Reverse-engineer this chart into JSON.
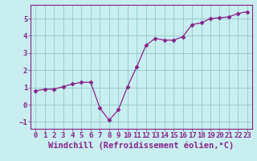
{
  "x": [
    0,
    1,
    2,
    3,
    4,
    5,
    6,
    7,
    8,
    9,
    10,
    11,
    12,
    13,
    14,
    15,
    16,
    17,
    18,
    19,
    20,
    21,
    22,
    23
  ],
  "y": [
    0.8,
    0.9,
    0.9,
    1.05,
    1.2,
    1.3,
    1.3,
    -0.2,
    -0.9,
    -0.3,
    1.05,
    2.2,
    3.45,
    3.85,
    3.75,
    3.75,
    3.95,
    4.65,
    4.75,
    5.0,
    5.05,
    5.1,
    5.3,
    5.4
  ],
  "line_color": "#882288",
  "marker": "D",
  "marker_size": 2.5,
  "bg_color": "#c8eef0",
  "grid_color": "#99cccc",
  "xlabel": "Windchill (Refroidissement éolien,°C)",
  "ylim": [
    -1.4,
    5.8
  ],
  "xlim": [
    -0.5,
    23.5
  ],
  "yticks": [
    -1,
    0,
    1,
    2,
    3,
    4,
    5
  ],
  "xticks": [
    0,
    1,
    2,
    3,
    4,
    5,
    6,
    7,
    8,
    9,
    10,
    11,
    12,
    13,
    14,
    15,
    16,
    17,
    18,
    19,
    20,
    21,
    22,
    23
  ],
  "tick_label_fontsize": 6.5,
  "xlabel_fontsize": 7.5,
  "tick_color": "#882288",
  "label_color": "#882288",
  "spine_color": "#882288"
}
